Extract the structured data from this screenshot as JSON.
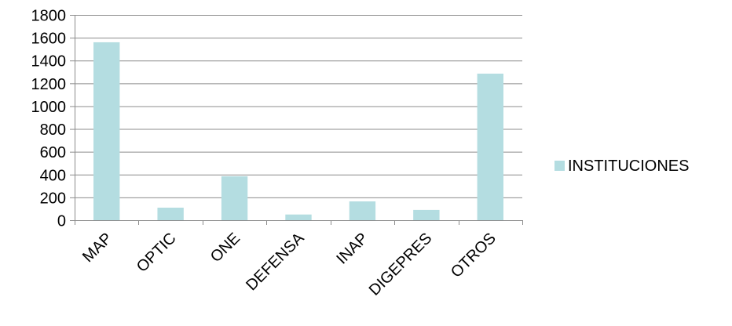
{
  "chart_data": {
    "type": "bar",
    "title": "",
    "xlabel": "",
    "ylabel": "",
    "categories": [
      "MAP",
      "OPTIC",
      "ONE",
      "DEFENSA",
      "INAP",
      "DIGEPRES",
      "OTROS"
    ],
    "series": [
      {
        "name": "INSTITUCIONES",
        "values": [
          1560,
          110,
          385,
          50,
          165,
          90,
          1285
        ],
        "color": "#b4dde1"
      }
    ],
    "ylim": [
      0,
      1800
    ],
    "yticks": [
      0,
      200,
      400,
      600,
      800,
      1000,
      1200,
      1400,
      1600,
      1800
    ],
    "grid": true,
    "legend_position": "right",
    "colors": {
      "bar": "#b4dde1",
      "grid": "#8c8c8c",
      "axis": "#8c8c8c"
    }
  }
}
